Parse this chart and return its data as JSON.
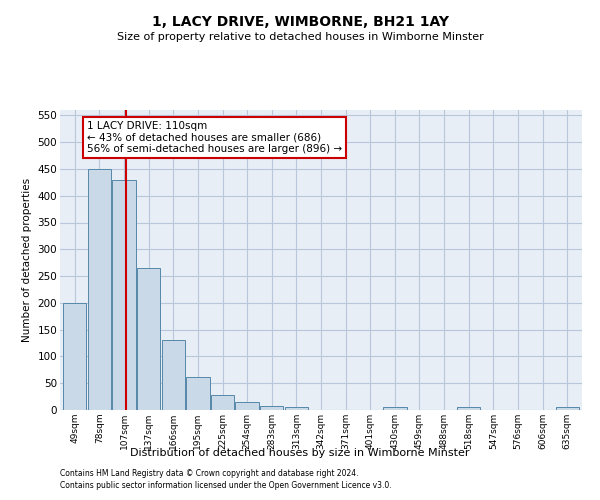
{
  "title": "1, LACY DRIVE, WIMBORNE, BH21 1AY",
  "subtitle": "Size of property relative to detached houses in Wimborne Minster",
  "xlabel": "Distribution of detached houses by size in Wimborne Minster",
  "ylabel": "Number of detached properties",
  "footnote1": "Contains HM Land Registry data © Crown copyright and database right 2024.",
  "footnote2": "Contains public sector information licensed under the Open Government Licence v3.0.",
  "bin_labels": [
    "49sqm",
    "78sqm",
    "107sqm",
    "137sqm",
    "166sqm",
    "195sqm",
    "225sqm",
    "254sqm",
    "283sqm",
    "313sqm",
    "342sqm",
    "371sqm",
    "401sqm",
    "430sqm",
    "459sqm",
    "488sqm",
    "518sqm",
    "547sqm",
    "576sqm",
    "606sqm",
    "635sqm"
  ],
  "bar_values": [
    200,
    450,
    430,
    265,
    130,
    62,
    28,
    15,
    8,
    5,
    0,
    0,
    0,
    5,
    0,
    0,
    5,
    0,
    0,
    0,
    5
  ],
  "bar_color": "#c9d9e8",
  "bar_edge_color": "#5588aa",
  "grid_color": "#b8c8da",
  "background_color": "#e8eef6",
  "annotation_text": "1 LACY DRIVE: 110sqm\n← 43% of detached houses are smaller (686)\n56% of semi-detached houses are larger (896) →",
  "annotation_box_color": "#ffffff",
  "annotation_border_color": "#cc0000",
  "red_line_color": "#cc0000",
  "ylim": [
    0,
    560
  ],
  "yticks": [
    0,
    50,
    100,
    150,
    200,
    250,
    300,
    350,
    400,
    450,
    500,
    550
  ]
}
